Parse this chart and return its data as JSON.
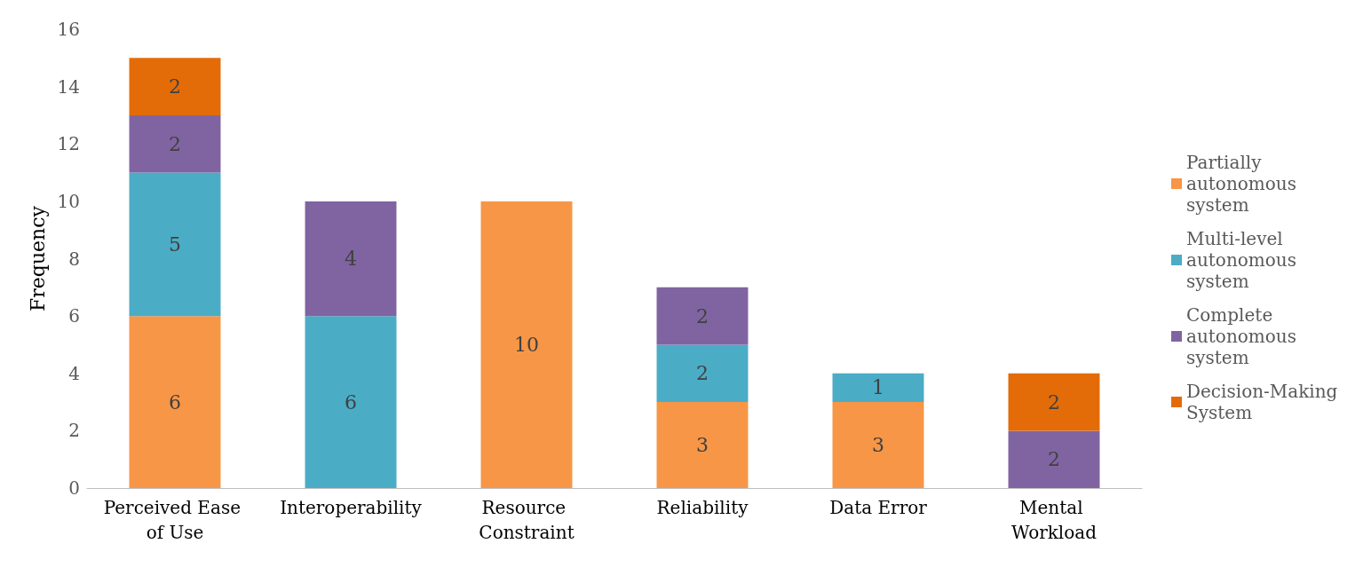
{
  "chart_data": {
    "type": "bar",
    "stacked": true,
    "ylabel": "Frequency",
    "categories": [
      "Perceived Ease of Use",
      "Interoperability",
      "Resource Constraint",
      "Reliability",
      "Data Error",
      "Mental Workload"
    ],
    "series": [
      {
        "name": "Partially autonomous system",
        "color": "#f79646",
        "values": [
          6,
          null,
          10,
          3,
          3,
          null
        ]
      },
      {
        "name": "Multi-level autonomous system",
        "color": "#4bacc6",
        "values": [
          5,
          6,
          null,
          2,
          1,
          null
        ]
      },
      {
        "name": "Complete autonomous system",
        "color": "#8064a2",
        "values": [
          2,
          4,
          null,
          2,
          null,
          2
        ]
      },
      {
        "name": "Decision-Making System",
        "color": "#e36c09",
        "values": [
          2,
          null,
          null,
          null,
          null,
          2
        ]
      }
    ],
    "ylim": [
      0,
      16
    ],
    "yticks": [
      0,
      2,
      4,
      6,
      8,
      10,
      12,
      14,
      16
    ],
    "data_labels": true,
    "grid": false,
    "legend": "right"
  }
}
